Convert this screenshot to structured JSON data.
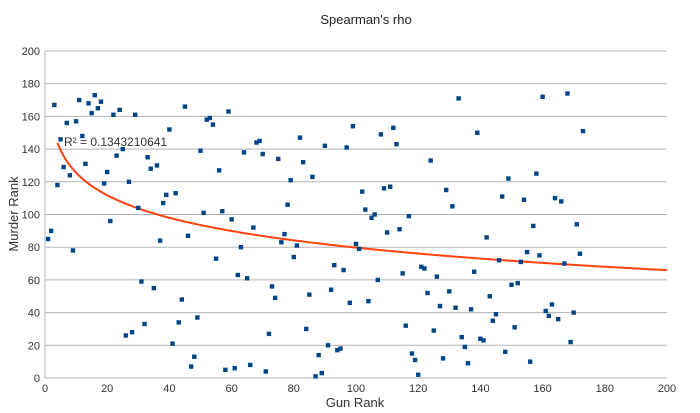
{
  "chart_data": {
    "type": "scatter",
    "title": "Spearman's rho",
    "xlabel": "Gun Rank",
    "ylabel": "Murder Rank",
    "xlim": [
      0,
      200
    ],
    "ylim": [
      0,
      200
    ],
    "x_ticks": [
      0,
      20,
      40,
      60,
      80,
      100,
      120,
      140,
      160,
      180,
      200
    ],
    "y_ticks": [
      0,
      20,
      40,
      60,
      80,
      100,
      120,
      140,
      160,
      180,
      200
    ],
    "grid": "horizontal",
    "legend": "none",
    "marker_color": "#004586",
    "trendline": {
      "type": "logarithmic",
      "color": "#ff420e",
      "x_range": [
        4,
        200
      ],
      "equation_form": "y = a - b*ln(x)",
      "a": 171.4,
      "b": 19.9,
      "r_squared_label": "R² = 0.1343210641"
    },
    "series": [
      {
        "points": [
          [
            1,
            85
          ],
          [
            2,
            90
          ],
          [
            3,
            167
          ],
          [
            4,
            118
          ],
          [
            5,
            146
          ],
          [
            6,
            129
          ],
          [
            7,
            156
          ],
          [
            8,
            124
          ],
          [
            9,
            78
          ],
          [
            10,
            157
          ],
          [
            11,
            170
          ],
          [
            12,
            148
          ],
          [
            13,
            131
          ],
          [
            14,
            168
          ],
          [
            15,
            162
          ],
          [
            16,
            173
          ],
          [
            17,
            165
          ],
          [
            18,
            169
          ],
          [
            19,
            119
          ],
          [
            20,
            126
          ],
          [
            21,
            96
          ],
          [
            22,
            161
          ],
          [
            23,
            136
          ],
          [
            24,
            164
          ],
          [
            25,
            140
          ],
          [
            26,
            26
          ],
          [
            27,
            120
          ],
          [
            28,
            28
          ],
          [
            29,
            161
          ],
          [
            30,
            104
          ],
          [
            31,
            59
          ],
          [
            32,
            33
          ],
          [
            33,
            135
          ],
          [
            34,
            128
          ],
          [
            35,
            55
          ],
          [
            36,
            130
          ],
          [
            37,
            84
          ],
          [
            38,
            107
          ],
          [
            39,
            112
          ],
          [
            40,
            152
          ],
          [
            41,
            21
          ],
          [
            42,
            113
          ],
          [
            43,
            34
          ],
          [
            44,
            48
          ],
          [
            45,
            166
          ],
          [
            46,
            87
          ],
          [
            47,
            7
          ],
          [
            48,
            13
          ],
          [
            49,
            37
          ],
          [
            50,
            139
          ],
          [
            51,
            101
          ],
          [
            52,
            158
          ],
          [
            53,
            159
          ],
          [
            54,
            155
          ],
          [
            55,
            73
          ],
          [
            56,
            127
          ],
          [
            57,
            102
          ],
          [
            58,
            5
          ],
          [
            59,
            163
          ],
          [
            60,
            97
          ],
          [
            61,
            6
          ],
          [
            62,
            63
          ],
          [
            63,
            80
          ],
          [
            64,
            138
          ],
          [
            65,
            61
          ],
          [
            66,
            8
          ],
          [
            67,
            92
          ],
          [
            68,
            144
          ],
          [
            69,
            145
          ],
          [
            70,
            137
          ],
          [
            71,
            4
          ],
          [
            72,
            27
          ],
          [
            73,
            56
          ],
          [
            74,
            49
          ],
          [
            75,
            134
          ],
          [
            76,
            83
          ],
          [
            77,
            88
          ],
          [
            78,
            106
          ],
          [
            79,
            121
          ],
          [
            80,
            74
          ],
          [
            81,
            81
          ],
          [
            82,
            147
          ],
          [
            83,
            132
          ],
          [
            84,
            30
          ],
          [
            85,
            51
          ],
          [
            86,
            123
          ],
          [
            87,
            1
          ],
          [
            88,
            14
          ],
          [
            89,
            3
          ],
          [
            90,
            142
          ],
          [
            91,
            20
          ],
          [
            92,
            54
          ],
          [
            93,
            69
          ],
          [
            94,
            17
          ],
          [
            95,
            18
          ],
          [
            96,
            66
          ],
          [
            97,
            141
          ],
          [
            98,
            46
          ],
          [
            99,
            154
          ],
          [
            100,
            82
          ],
          [
            101,
            79
          ],
          [
            102,
            114
          ],
          [
            103,
            103
          ],
          [
            104,
            47
          ],
          [
            105,
            98
          ],
          [
            106,
            100
          ],
          [
            107,
            60
          ],
          [
            108,
            149
          ],
          [
            109,
            116
          ],
          [
            110,
            89
          ],
          [
            111,
            117
          ],
          [
            112,
            153
          ],
          [
            113,
            143
          ],
          [
            114,
            91
          ],
          [
            115,
            64
          ],
          [
            116,
            32
          ],
          [
            117,
            99
          ],
          [
            118,
            15
          ],
          [
            119,
            11
          ],
          [
            120,
            2
          ],
          [
            121,
            68
          ],
          [
            122,
            67
          ],
          [
            123,
            52
          ],
          [
            124,
            133
          ],
          [
            125,
            29
          ],
          [
            126,
            62
          ],
          [
            127,
            44
          ],
          [
            128,
            12
          ],
          [
            129,
            115
          ],
          [
            130,
            53
          ],
          [
            131,
            105
          ],
          [
            132,
            43
          ],
          [
            133,
            171
          ],
          [
            134,
            25
          ],
          [
            135,
            19
          ],
          [
            136,
            9
          ],
          [
            137,
            42
          ],
          [
            138,
            65
          ],
          [
            139,
            150
          ],
          [
            140,
            24
          ],
          [
            141,
            23
          ],
          [
            142,
            86
          ],
          [
            143,
            50
          ],
          [
            144,
            35
          ],
          [
            145,
            39
          ],
          [
            146,
            72
          ],
          [
            147,
            111
          ],
          [
            148,
            16
          ],
          [
            149,
            122
          ],
          [
            150,
            57
          ],
          [
            151,
            31
          ],
          [
            152,
            58
          ],
          [
            153,
            71
          ],
          [
            154,
            109
          ],
          [
            155,
            77
          ],
          [
            156,
            10
          ],
          [
            157,
            93
          ],
          [
            158,
            125
          ],
          [
            159,
            75
          ],
          [
            160,
            172
          ],
          [
            161,
            41
          ],
          [
            162,
            38
          ],
          [
            163,
            45
          ],
          [
            164,
            110
          ],
          [
            165,
            36
          ],
          [
            166,
            108
          ],
          [
            167,
            70
          ],
          [
            168,
            174
          ],
          [
            169,
            22
          ],
          [
            170,
            40
          ],
          [
            171,
            94
          ],
          [
            172,
            76
          ],
          [
            173,
            151
          ]
        ]
      }
    ]
  }
}
